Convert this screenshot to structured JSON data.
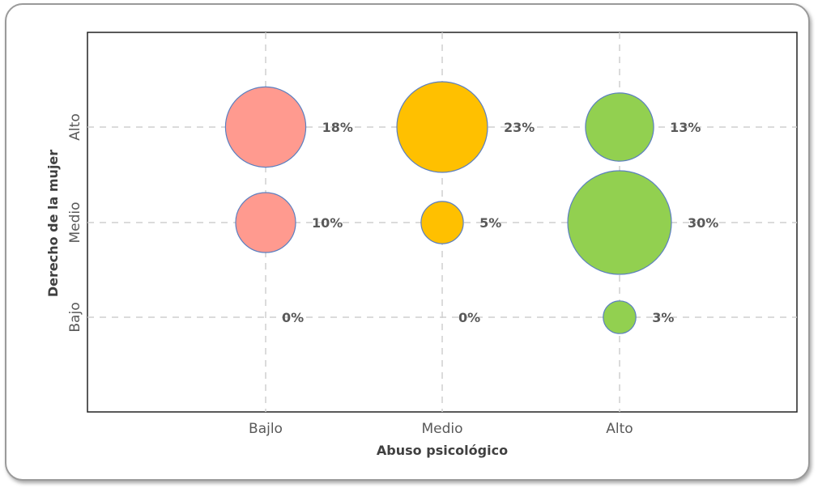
{
  "chart_data": {
    "type": "scatter",
    "xlabel": "Abuso psicológico",
    "ylabel": "Derecho de la mujer",
    "x_categories": [
      "Bajlo",
      "Medio",
      "Alto"
    ],
    "y_categories": [
      "Bajo",
      "Medio",
      "Alto"
    ],
    "grid": true,
    "points": [
      {
        "x": "Bajlo",
        "y": "Alto",
        "value": 18,
        "label": "18%",
        "color": "#FF9A8F"
      },
      {
        "x": "Bajlo",
        "y": "Medio",
        "value": 10,
        "label": "10%",
        "color": "#FF9A8F"
      },
      {
        "x": "Bajlo",
        "y": "Bajo",
        "value": 0,
        "label": "0%",
        "color": "#FF9A8F"
      },
      {
        "x": "Medio",
        "y": "Alto",
        "value": 23,
        "label": "23%",
        "color": "#FFC000"
      },
      {
        "x": "Medio",
        "y": "Medio",
        "value": 5,
        "label": "5%",
        "color": "#FFC000"
      },
      {
        "x": "Medio",
        "y": "Bajo",
        "value": 0,
        "label": "0%",
        "color": "#FFC000"
      },
      {
        "x": "Alto",
        "y": "Alto",
        "value": 13,
        "label": "13%",
        "color": "#92D050"
      },
      {
        "x": "Alto",
        "y": "Medio",
        "value": 30,
        "label": "30%",
        "color": "#92D050"
      },
      {
        "x": "Alto",
        "y": "Bajo",
        "value": 3,
        "label": "3%",
        "color": "#92D050"
      }
    ]
  }
}
